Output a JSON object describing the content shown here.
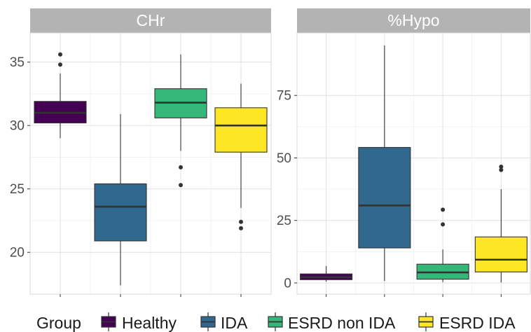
{
  "chart_data": {
    "type": "box",
    "legend": {
      "title": "Group",
      "position": "bottom",
      "entries": [
        {
          "label": "Healthy",
          "color": "#440154"
        },
        {
          "label": "IDA",
          "color": "#31688E"
        },
        {
          "label": "ESRD non IDA",
          "color": "#35B779"
        },
        {
          "label": "ESRD IDA",
          "color": "#FDE725"
        }
      ]
    },
    "panels": [
      {
        "title": "CHr",
        "y_ticks": [
          20,
          25,
          30,
          35
        ],
        "ylim": [
          16.7,
          37.3
        ],
        "boxes": [
          {
            "group": "Healthy",
            "min": 29.0,
            "q1": 30.2,
            "median": 31.0,
            "q3": 31.9,
            "max": 34.1,
            "outliers": [
              34.8,
              35.6
            ]
          },
          {
            "group": "IDA",
            "min": 17.4,
            "q1": 20.9,
            "median": 23.6,
            "q3": 25.4,
            "max": 30.9,
            "outliers": []
          },
          {
            "group": "ESRD non IDA",
            "min": 28.0,
            "q1": 30.6,
            "median": 31.8,
            "q3": 32.9,
            "max": 35.6,
            "outliers": [
              26.7,
              25.3
            ]
          },
          {
            "group": "ESRD IDA",
            "min": 23.5,
            "q1": 27.9,
            "median": 30.0,
            "q3": 31.4,
            "max": 33.3,
            "outliers": [
              22.4,
              21.9
            ]
          }
        ]
      },
      {
        "title": "%Hypo",
        "y_ticks": [
          0,
          25,
          50,
          75
        ],
        "ylim": [
          -4.5,
          100
        ],
        "boxes": [
          {
            "group": "Healthy",
            "min": 0.5,
            "q1": 1.3,
            "median": 2.3,
            "q3": 3.6,
            "max": 6.8,
            "outliers": []
          },
          {
            "group": "IDA",
            "min": 0.8,
            "q1": 14.0,
            "median": 31.0,
            "q3": 54.2,
            "max": 95.0,
            "outliers": []
          },
          {
            "group": "ESRD non IDA",
            "min": 0.3,
            "q1": 1.5,
            "median": 4.2,
            "q3": 7.5,
            "max": 13.4,
            "outliers": [
              23.4,
              29.3
            ]
          },
          {
            "group": "ESRD IDA",
            "min": 0.2,
            "q1": 4.4,
            "median": 9.3,
            "q3": 18.4,
            "max": 37.5,
            "outliers": [
              45.2,
              46.5
            ]
          }
        ]
      }
    ]
  }
}
